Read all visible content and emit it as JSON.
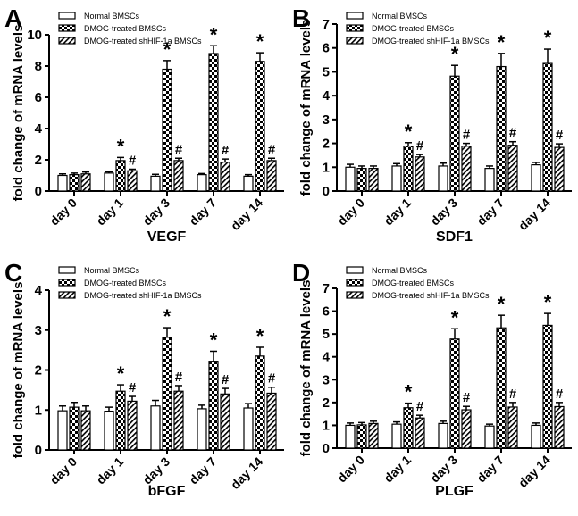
{
  "legend": [
    "Normal BMSCs",
    "DMOG-treated BMSCs",
    "DMOG-treated shHIF-1a BMSCs"
  ],
  "chart_data": [
    {
      "type": "bar",
      "panel_label": "A",
      "title": "VEGF",
      "xlabel": "VEGF",
      "ylabel": "fold change of mRNA levels",
      "categories": [
        "day 0",
        "day 1",
        "day 3",
        "day 7",
        "day 14"
      ],
      "ylim": [
        0,
        10
      ],
      "yticks": [
        0,
        2,
        4,
        6,
        8,
        10
      ],
      "series": [
        {
          "name": "Normal BMSCs",
          "values": [
            1.0,
            1.15,
            0.95,
            1.05,
            0.95
          ],
          "errors": [
            0.1,
            0.08,
            0.12,
            0.07,
            0.1
          ]
        },
        {
          "name": "DMOG-treated BMSCs",
          "values": [
            1.05,
            1.95,
            7.8,
            8.8,
            8.3
          ],
          "errors": [
            0.1,
            0.2,
            0.55,
            0.5,
            0.55
          ],
          "markers": [
            "",
            "*",
            "*",
            "*",
            "*"
          ]
        },
        {
          "name": "DMOG-treated shHIF-1a BMSCs",
          "values": [
            1.1,
            1.3,
            1.95,
            1.85,
            1.95
          ],
          "errors": [
            0.12,
            0.1,
            0.15,
            0.2,
            0.15
          ],
          "markers": [
            "",
            "#",
            "#",
            "#",
            "#"
          ]
        }
      ]
    },
    {
      "type": "bar",
      "panel_label": "B",
      "title": "SDF1",
      "xlabel": "SDF1",
      "ylabel": "fold change of mRNA levels",
      "categories": [
        "day 0",
        "day 1",
        "day 3",
        "day 7",
        "day 14"
      ],
      "ylim": [
        0,
        7
      ],
      "yticks": [
        0,
        1,
        2,
        3,
        4,
        5,
        6,
        7
      ],
      "series": [
        {
          "name": "Normal BMSCs",
          "values": [
            1.0,
            1.05,
            1.05,
            0.95,
            1.1
          ],
          "errors": [
            0.12,
            0.1,
            0.12,
            0.1,
            0.1
          ]
        },
        {
          "name": "DMOG-treated BMSCs",
          "values": [
            0.95,
            1.88,
            4.82,
            5.22,
            5.35
          ],
          "errors": [
            0.1,
            0.15,
            0.45,
            0.55,
            0.6
          ],
          "markers": [
            "",
            "*",
            "*",
            "*",
            "*"
          ]
        },
        {
          "name": "DMOG-treated shHIF-1a BMSCs",
          "values": [
            0.95,
            1.43,
            1.88,
            1.92,
            1.83
          ],
          "errors": [
            0.1,
            0.1,
            0.12,
            0.15,
            0.15
          ],
          "markers": [
            "",
            "#",
            "#",
            "#",
            "#"
          ]
        }
      ]
    },
    {
      "type": "bar",
      "panel_label": "C",
      "title": "bFGF",
      "xlabel": "bFGF",
      "ylabel": "fold change of mRNA levels",
      "categories": [
        "day 0",
        "day 1",
        "day 3",
        "day 7",
        "day 14"
      ],
      "ylim": [
        0,
        4
      ],
      "yticks": [
        0,
        1,
        2,
        3,
        4
      ],
      "series": [
        {
          "name": "Normal BMSCs",
          "values": [
            0.98,
            0.97,
            1.1,
            1.03,
            1.05
          ],
          "errors": [
            0.12,
            0.1,
            0.14,
            0.09,
            0.11
          ]
        },
        {
          "name": "DMOG-treated BMSCs",
          "values": [
            1.07,
            1.47,
            2.82,
            2.22,
            2.35
          ],
          "errors": [
            0.12,
            0.16,
            0.24,
            0.25,
            0.22
          ],
          "markers": [
            "",
            "*",
            "*",
            "*",
            "*"
          ]
        },
        {
          "name": "DMOG-treated shHIF-1a BMSCs",
          "values": [
            0.98,
            1.22,
            1.47,
            1.4,
            1.42
          ],
          "errors": [
            0.12,
            0.12,
            0.14,
            0.14,
            0.15
          ],
          "markers": [
            "",
            "#",
            "#",
            "#",
            "#"
          ]
        }
      ]
    },
    {
      "type": "bar",
      "panel_label": "D",
      "title": "PLGF",
      "xlabel": "PLGF",
      "ylabel": "fold change of mRNA levels",
      "categories": [
        "day 0",
        "day 1",
        "day 3",
        "day 7",
        "day 14"
      ],
      "ylim": [
        0,
        7
      ],
      "yticks": [
        0,
        1,
        2,
        3,
        4,
        5,
        6,
        7
      ],
      "series": [
        {
          "name": "Normal BMSCs",
          "values": [
            1.0,
            1.05,
            1.08,
            0.97,
            1.0
          ],
          "errors": [
            0.1,
            0.1,
            0.1,
            0.08,
            0.1
          ]
        },
        {
          "name": "DMOG-treated BMSCs",
          "values": [
            1.02,
            1.77,
            4.78,
            5.27,
            5.38
          ],
          "errors": [
            0.1,
            0.2,
            0.45,
            0.55,
            0.52
          ],
          "markers": [
            "",
            "*",
            "*",
            "*",
            "*"
          ]
        },
        {
          "name": "DMOG-treated shHIF-1a BMSCs",
          "values": [
            1.08,
            1.32,
            1.68,
            1.8,
            1.82
          ],
          "errors": [
            0.1,
            0.12,
            0.15,
            0.2,
            0.18
          ],
          "markers": [
            "",
            "#",
            "#",
            "#",
            "#"
          ]
        }
      ]
    }
  ]
}
